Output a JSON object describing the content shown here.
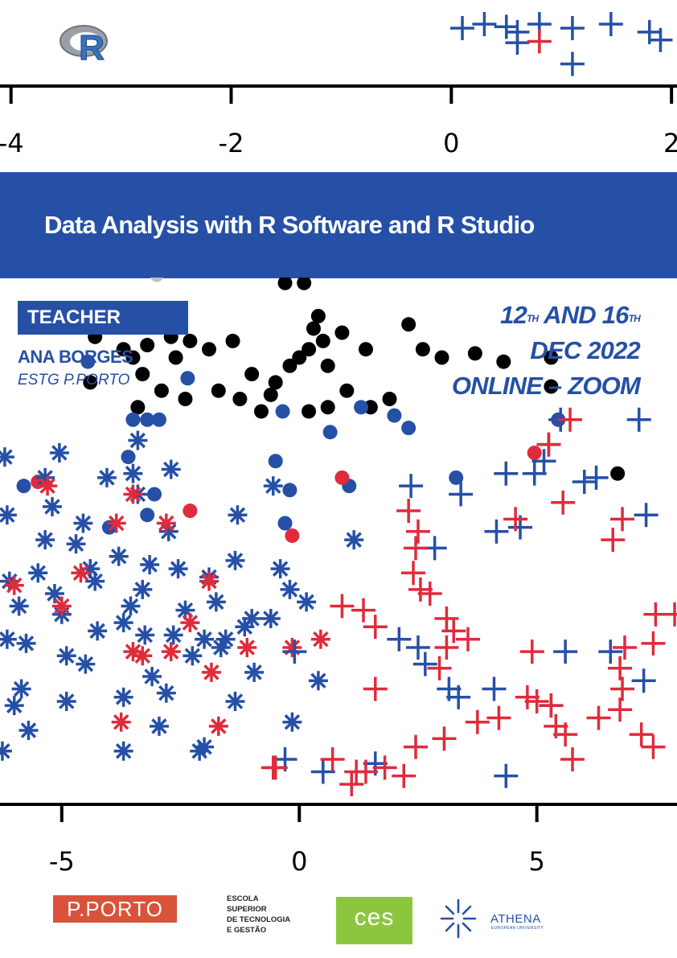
{
  "title": "Data Analysis with R Software and R Studio",
  "teacher": {
    "label": "TEACHER",
    "name": "ANA BORGES",
    "institution": "ESTG P.PORTO"
  },
  "dates": {
    "day1": "12",
    "sup1": "TH",
    "and": "AND",
    "day2": "16",
    "sup2": "TH",
    "month_year": "DEC 2022",
    "mode": "ONLINE – ZOOM"
  },
  "colors": {
    "blue": "#2650a6",
    "red": "#df2b3b",
    "black": "#000000",
    "gray": "#bfbfbf"
  },
  "logos": {
    "r_logo": "R",
    "pporto": "P.PORTO",
    "estg_lines": [
      "ESCOLA",
      "SUPERIOR",
      "DE TECNOLOGIA",
      "E GESTÃO"
    ],
    "ces": "ces",
    "athena": "ATHENA",
    "athena_sub": "EUROPEAN UNIVERSITY"
  },
  "chart_data": [
    {
      "type": "scatter",
      "xticks": [
        -4,
        -2,
        0,
        2
      ],
      "xlim": [
        -4.1,
        2.05
      ],
      "series": [
        {
          "marker": "plus",
          "color": "blue",
          "points": [
            [
              0.1,
              0.85
            ],
            [
              0.3,
              1.0
            ],
            [
              0.5,
              0.9
            ],
            [
              0.6,
              0.7
            ],
            [
              0.6,
              0.3
            ],
            [
              0.8,
              1.0
            ],
            [
              1.1,
              0.85
            ],
            [
              1.45,
              1.0
            ],
            [
              1.8,
              0.7
            ],
            [
              1.9,
              0.4
            ],
            [
              1.1,
              -0.5
            ]
          ]
        },
        {
          "marker": "plus",
          "color": "red",
          "points": [
            [
              0.8,
              0.35
            ]
          ]
        }
      ]
    },
    {
      "type": "scatter",
      "xticks": [
        -5,
        0,
        5
      ],
      "xlim": [
        -6.3,
        7.95
      ],
      "series": [
        {
          "marker": "dot",
          "color": "gray",
          "points": [
            [
              -2.1,
              4.2
            ],
            [
              -2.3,
              4.1
            ],
            [
              -2.25,
              3.9
            ],
            [
              -3.0,
              3.5
            ]
          ]
        },
        {
          "marker": "dot",
          "color": "black",
          "points": [
            [
              -4.3,
              2.75
            ],
            [
              -3.7,
              2.6
            ],
            [
              -3.5,
              2.5
            ],
            [
              -3.2,
              2.65
            ],
            [
              -2.7,
              2.75
            ],
            [
              -2.3,
              2.7
            ],
            [
              -1.9,
              2.6
            ],
            [
              -1.4,
              2.7
            ],
            [
              -1.0,
              2.3
            ],
            [
              -0.5,
              2.2
            ],
            [
              -0.2,
              2.4
            ],
            [
              0.0,
              2.5
            ],
            [
              0.2,
              2.6
            ],
            [
              0.3,
              2.85
            ],
            [
              0.5,
              2.7
            ],
            [
              0.9,
              2.8
            ],
            [
              1.4,
              2.6
            ],
            [
              2.3,
              2.9
            ],
            [
              2.6,
              2.6
            ],
            [
              -0.3,
              3.4
            ],
            [
              -0.1,
              3.9
            ],
            [
              0.1,
              3.4
            ],
            [
              0.4,
              3.0
            ],
            [
              0.6,
              2.4
            ],
            [
              1.0,
              2.1
            ],
            [
              1.5,
              1.9
            ],
            [
              1.9,
              2.0
            ],
            [
              3.0,
              2.5
            ],
            [
              3.7,
              2.55
            ],
            [
              4.3,
              2.45
            ],
            [
              5.3,
              2.5
            ],
            [
              5.3,
              2.15
            ],
            [
              6.7,
              1.1
            ],
            [
              -4.4,
              2.2
            ],
            [
              -3.4,
              1.9
            ],
            [
              -2.9,
              2.1
            ],
            [
              -2.4,
              2.0
            ],
            [
              -1.7,
              2.1
            ],
            [
              -1.25,
              2.0
            ],
            [
              -0.6,
              2.05
            ],
            [
              0.2,
              1.85
            ],
            [
              0.6,
              1.9
            ],
            [
              -0.8,
              1.85
            ],
            [
              -3.3,
              2.3
            ],
            [
              -2.6,
              2.5
            ]
          ]
        },
        {
          "marker": "dot",
          "color": "blue",
          "points": [
            [
              -4.45,
              2.45
            ],
            [
              -3.5,
              1.75
            ],
            [
              -3.2,
              1.75
            ],
            [
              -2.95,
              1.75
            ],
            [
              -3.6,
              1.3
            ],
            [
              -3.05,
              0.85
            ],
            [
              -2.35,
              2.25
            ],
            [
              -0.35,
              1.85
            ],
            [
              -0.5,
              1.25
            ],
            [
              -0.2,
              0.9
            ],
            [
              0.65,
              1.6
            ],
            [
              1.3,
              1.9
            ],
            [
              2.0,
              1.8
            ],
            [
              2.3,
              1.65
            ],
            [
              1.05,
              0.95
            ],
            [
              -0.3,
              0.5
            ],
            [
              3.3,
              1.05
            ],
            [
              5.45,
              1.75
            ],
            [
              -5.8,
              0.95
            ],
            [
              -4.0,
              0.45
            ],
            [
              -3.2,
              0.6
            ]
          ]
        },
        {
          "marker": "dot",
          "color": "red",
          "points": [
            [
              -2.3,
              0.65
            ],
            [
              -0.15,
              0.35
            ],
            [
              0.9,
              1.05
            ],
            [
              4.95,
              1.35
            ],
            [
              -5.5,
              1.0
            ]
          ]
        },
        {
          "marker": "star",
          "color": "blue",
          "points": [
            [
              -6.2,
              1.3
            ],
            [
              -6.15,
              0.6
            ],
            [
              -6.1,
              -0.2
            ],
            [
              -5.9,
              -0.5
            ],
            [
              -5.85,
              -1.5
            ],
            [
              -5.7,
              -2.0
            ],
            [
              -5.5,
              -0.1
            ],
            [
              -5.35,
              1.05
            ],
            [
              -5.2,
              0.7
            ],
            [
              -5.05,
              1.35
            ],
            [
              -5.0,
              -0.6
            ],
            [
              -4.9,
              -1.1
            ],
            [
              -4.7,
              0.25
            ],
            [
              -4.4,
              -0.05
            ],
            [
              -4.3,
              -0.2
            ],
            [
              -4.05,
              1.05
            ],
            [
              -3.8,
              0.1
            ],
            [
              -3.7,
              -0.7
            ],
            [
              -3.5,
              1.1
            ],
            [
              -3.4,
              0.85
            ],
            [
              -3.3,
              -0.3
            ],
            [
              -3.1,
              -1.35
            ],
            [
              -2.95,
              -1.95
            ],
            [
              -2.75,
              0.4
            ],
            [
              -2.55,
              -0.05
            ],
            [
              -2.4,
              -0.55
            ],
            [
              -2.25,
              -1.1
            ],
            [
              -2.0,
              -2.2
            ],
            [
              -1.75,
              -0.45
            ],
            [
              -1.55,
              -0.9
            ],
            [
              -1.35,
              0.05
            ],
            [
              -1.3,
              0.6
            ],
            [
              -1.15,
              -0.75
            ],
            [
              -0.95,
              -1.3
            ],
            [
              -0.55,
              0.95
            ],
            [
              -0.4,
              -0.05
            ],
            [
              -0.2,
              -0.3
            ],
            [
              0.15,
              -0.45
            ],
            [
              0.4,
              -1.4
            ],
            [
              -5.75,
              -0.95
            ],
            [
              -6.0,
              -1.7
            ],
            [
              -4.9,
              -1.65
            ],
            [
              -4.5,
              -1.2
            ],
            [
              -3.7,
              -1.6
            ],
            [
              -3.25,
              -0.85
            ],
            [
              -2.8,
              -1.55
            ],
            [
              -2.65,
              -0.85
            ],
            [
              -1.9,
              -0.15
            ],
            [
              -1.65,
              -1.0
            ],
            [
              -1.0,
              -0.65
            ],
            [
              -0.15,
              -1.9
            ],
            [
              1.15,
              0.3
            ],
            [
              -3.7,
              -2.25
            ],
            [
              -2.1,
              -2.25
            ],
            [
              -6.15,
              -0.9
            ],
            [
              -5.35,
              0.3
            ],
            [
              -4.55,
              0.5
            ],
            [
              -3.55,
              -0.5
            ],
            [
              -3.15,
              0.0
            ],
            [
              -2.0,
              -0.9
            ],
            [
              -1.35,
              -1.65
            ],
            [
              -0.6,
              -0.65
            ],
            [
              -6.25,
              -2.25
            ],
            [
              -5.15,
              -0.35
            ],
            [
              -4.25,
              -0.8
            ],
            [
              -2.7,
              1.15
            ],
            [
              -3.4,
              1.5
            ]
          ]
        },
        {
          "marker": "star",
          "color": "red",
          "points": [
            [
              -6.0,
              -0.25
            ],
            [
              -5.3,
              0.95
            ],
            [
              -5.0,
              -0.5
            ],
            [
              -4.6,
              -0.1
            ],
            [
              -3.85,
              0.5
            ],
            [
              -3.5,
              0.85
            ],
            [
              -2.8,
              0.5
            ],
            [
              -3.5,
              -1.05
            ],
            [
              -3.3,
              -1.1
            ],
            [
              -2.7,
              -1.05
            ],
            [
              -2.3,
              -0.7
            ],
            [
              -1.85,
              -1.3
            ],
            [
              -1.7,
              -1.95
            ],
            [
              -1.1,
              -1.0
            ],
            [
              -0.15,
              -1.0
            ],
            [
              -3.75,
              -1.9
            ],
            [
              -1.9,
              -0.2
            ],
            [
              0.45,
              -0.9
            ]
          ]
        },
        {
          "marker": "plus",
          "color": "blue",
          "points": [
            [
              2.35,
              0.95
            ],
            [
              3.4,
              0.85
            ],
            [
              4.35,
              1.1
            ],
            [
              4.95,
              1.1
            ],
            [
              5.25,
              1.45
            ],
            [
              5.5,
              1.75
            ],
            [
              6.0,
              1.0
            ],
            [
              6.25,
              1.05
            ],
            [
              7.3,
              0.6
            ],
            [
              4.65,
              0.45
            ],
            [
              4.15,
              0.4
            ],
            [
              2.85,
              0.2
            ],
            [
              2.1,
              -0.9
            ],
            [
              2.5,
              -1.0
            ],
            [
              2.65,
              -1.2
            ],
            [
              3.15,
              -1.5
            ],
            [
              5.6,
              -1.05
            ],
            [
              6.55,
              -1.05
            ],
            [
              7.25,
              -1.4
            ],
            [
              -0.1,
              -1.05
            ],
            [
              4.1,
              -1.5
            ],
            [
              3.35,
              -1.6
            ],
            [
              5.3,
              -1.7
            ],
            [
              -0.3,
              -2.35
            ],
            [
              0.5,
              -2.5
            ],
            [
              1.6,
              -2.4
            ],
            [
              4.35,
              -2.55
            ],
            [
              7.15,
              1.75
            ],
            [
              5.15,
              1.25
            ]
          ]
        },
        {
          "marker": "plus",
          "color": "red",
          "points": [
            [
              2.3,
              0.65
            ],
            [
              2.5,
              0.4
            ],
            [
              2.45,
              0.2
            ],
            [
              2.55,
              -0.3
            ],
            [
              2.4,
              -0.1
            ],
            [
              2.75,
              -0.35
            ],
            [
              3.1,
              -0.65
            ],
            [
              3.25,
              -0.8
            ],
            [
              3.55,
              -0.9
            ],
            [
              3.1,
              -1.0
            ],
            [
              2.95,
              -1.25
            ],
            [
              1.6,
              -0.75
            ],
            [
              0.9,
              -0.5
            ],
            [
              1.35,
              -0.55
            ],
            [
              4.55,
              0.55
            ],
            [
              5.55,
              0.75
            ],
            [
              5.7,
              1.75
            ],
            [
              6.6,
              0.3
            ],
            [
              6.8,
              0.55
            ],
            [
              7.5,
              -0.6
            ],
            [
              7.9,
              -0.6
            ],
            [
              4.9,
              -1.05
            ],
            [
              6.85,
              -1.0
            ],
            [
              7.45,
              -0.95
            ],
            [
              6.75,
              -1.25
            ],
            [
              6.8,
              -1.5
            ],
            [
              6.75,
              -1.75
            ],
            [
              6.3,
              -1.85
            ],
            [
              7.2,
              -2.05
            ],
            [
              7.45,
              -2.2
            ],
            [
              4.8,
              -1.6
            ],
            [
              5.0,
              -1.65
            ],
            [
              5.3,
              -1.7
            ],
            [
              4.2,
              -1.85
            ],
            [
              3.75,
              -1.9
            ],
            [
              3.05,
              -2.1
            ],
            [
              2.45,
              -2.2
            ],
            [
              1.6,
              -1.5
            ],
            [
              5.6,
              -2.05
            ],
            [
              5.4,
              -1.95
            ],
            [
              5.75,
              -2.35
            ],
            [
              0.7,
              -2.35
            ],
            [
              1.2,
              -2.5
            ],
            [
              1.4,
              -2.5
            ],
            [
              1.1,
              -2.65
            ],
            [
              1.8,
              -2.45
            ],
            [
              2.2,
              -2.55
            ],
            [
              -0.5,
              -2.45
            ],
            [
              -0.55,
              -2.45
            ],
            [
              5.25,
              1.45
            ]
          ]
        }
      ]
    }
  ]
}
